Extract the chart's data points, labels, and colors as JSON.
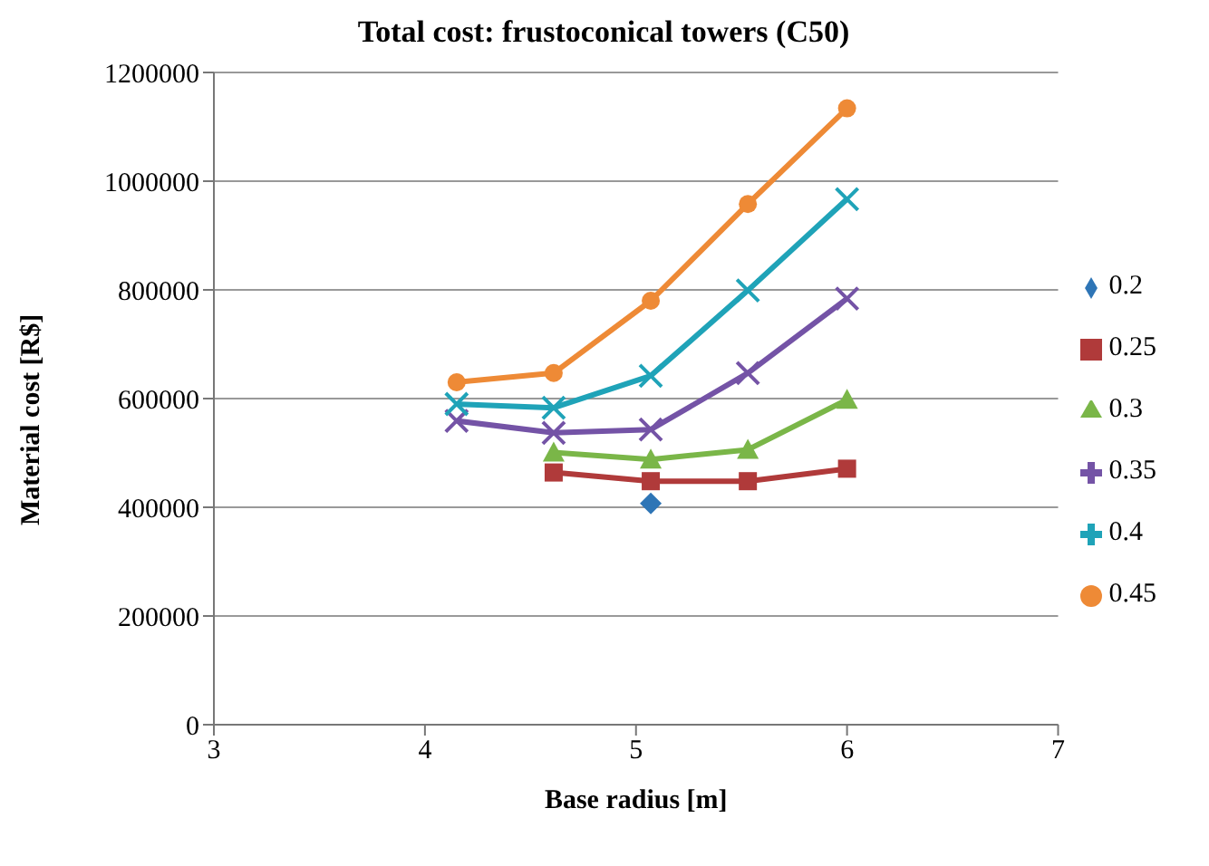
{
  "chart_data": {
    "type": "line",
    "title": "Total cost: frustoconical towers (C50)",
    "xlabel": "Base radius [m]",
    "ylabel": "Material cost [R$]",
    "xlim": [
      3,
      7
    ],
    "xticks": [
      3,
      4,
      5,
      6,
      7
    ],
    "ylim": [
      0,
      1200000
    ],
    "yticks": [
      0,
      200000,
      400000,
      600000,
      800000,
      1000000,
      1200000
    ],
    "grid": "y",
    "legend": "right",
    "line_style": "solid",
    "series": [
      {
        "name": "0.2",
        "color": "#2e75b6",
        "marker": "diamond",
        "x": [
          5.07
        ],
        "values": [
          407000
        ]
      },
      {
        "name": "0.25",
        "color": "#b03a3a",
        "marker": "square",
        "x": [
          4.61,
          5.07,
          5.53,
          6.0
        ],
        "values": [
          464000,
          448000,
          448000,
          471000
        ]
      },
      {
        "name": "0.3",
        "color": "#7ab648",
        "marker": "triangle",
        "x": [
          4.61,
          5.07,
          5.53,
          6.0
        ],
        "values": [
          501000,
          488000,
          506000,
          598000
        ]
      },
      {
        "name": "0.35",
        "color": "#7453a6",
        "marker": "cross",
        "x": [
          4.15,
          4.61,
          5.07,
          5.53,
          6.0
        ],
        "values": [
          559000,
          537000,
          543000,
          647000,
          784000
        ]
      },
      {
        "name": "0.4",
        "color": "#1fa3b8",
        "marker": "cross",
        "x": [
          4.15,
          4.61,
          5.07,
          5.53,
          6.0
        ],
        "values": [
          590000,
          583000,
          642000,
          799000,
          967000
        ]
      },
      {
        "name": "0.45",
        "color": "#ee8a36",
        "marker": "circle",
        "x": [
          4.15,
          4.61,
          5.07,
          5.53,
          6.0
        ],
        "values": [
          630000,
          647000,
          780000,
          958000,
          1134000
        ]
      }
    ]
  }
}
